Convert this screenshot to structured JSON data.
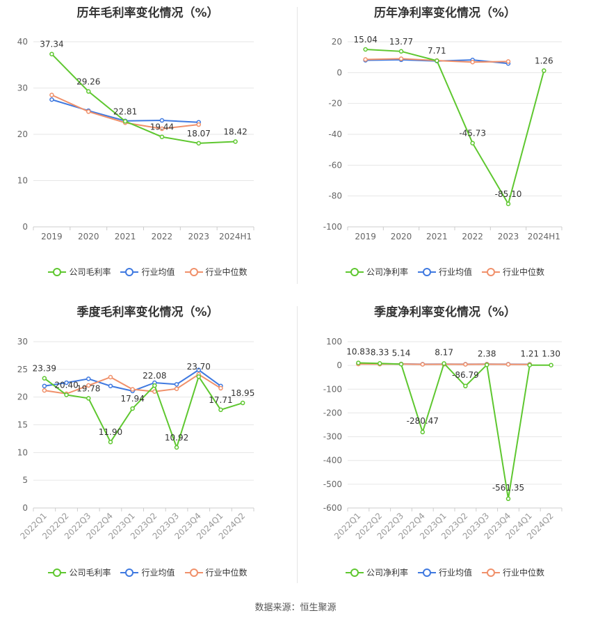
{
  "colors": {
    "company": "#5ec72f",
    "industry_avg": "#3f79e0",
    "industry_median": "#f0906a",
    "grid": "#e6e6e6",
    "axis_text": "#666666"
  },
  "source": "数据来源：恒生聚源",
  "chart_data": [
    {
      "type": "line",
      "title": "历年毛利率变化情况（%）",
      "categories": [
        "2019",
        "2020",
        "2021",
        "2022",
        "2023",
        "2024H1"
      ],
      "ylim": [
        0,
        40
      ],
      "yticks": [
        0,
        10,
        20,
        30,
        40
      ],
      "rotate_x": false,
      "grid": true,
      "legend": "bottom-center",
      "series": [
        {
          "name": "公司毛利率",
          "color_key": "company",
          "values": [
            37.34,
            29.26,
            22.81,
            19.44,
            18.07,
            18.42
          ],
          "labels": [
            "37.34",
            "29.26",
            "22.81",
            "19.44",
            "18.07",
            "18.42"
          ]
        },
        {
          "name": "行业均值",
          "color_key": "industry_avg",
          "values": [
            27.5,
            25.1,
            22.9,
            23.0,
            22.6,
            null
          ]
        },
        {
          "name": "行业中位数",
          "color_key": "industry_median",
          "values": [
            28.5,
            24.9,
            22.5,
            21.2,
            22.1,
            null
          ]
        }
      ]
    },
    {
      "type": "line",
      "title": "历年净利率变化情况（%）",
      "categories": [
        "2019",
        "2020",
        "2021",
        "2022",
        "2023",
        "2024H1"
      ],
      "ylim": [
        -100,
        20
      ],
      "yticks": [
        -100,
        -80,
        -60,
        -40,
        -20,
        0,
        20
      ],
      "rotate_x": false,
      "grid": true,
      "legend": "bottom-center",
      "series": [
        {
          "name": "公司净利率",
          "color_key": "company",
          "values": [
            15.04,
            13.77,
            7.71,
            -45.73,
            -85.1,
            1.26
          ],
          "labels": [
            "15.04",
            "13.77",
            "7.71",
            "-45.73",
            "-85.10",
            "1.26"
          ]
        },
        {
          "name": "行业均值",
          "color_key": "industry_avg",
          "values": [
            8.0,
            8.3,
            7.5,
            8.2,
            5.9,
            null
          ]
        },
        {
          "name": "行业中位数",
          "color_key": "industry_median",
          "values": [
            8.5,
            9.0,
            7.8,
            6.8,
            7.2,
            null
          ]
        }
      ]
    },
    {
      "type": "line",
      "title": "季度毛利率变化情况（%）",
      "categories": [
        "2022Q1",
        "2022Q2",
        "2022Q3",
        "2022Q4",
        "2023Q1",
        "2023Q2",
        "2023Q3",
        "2023Q4",
        "2024Q1",
        "2024Q2"
      ],
      "ylim": [
        0,
        30
      ],
      "yticks": [
        0,
        5,
        10,
        15,
        20,
        25,
        30
      ],
      "rotate_x": true,
      "grid": true,
      "legend": "bottom-center",
      "series": [
        {
          "name": "公司毛利率",
          "color_key": "company",
          "values": [
            23.39,
            20.4,
            19.78,
            11.9,
            17.94,
            22.08,
            10.92,
            23.7,
            17.71,
            18.95
          ],
          "labels": [
            "23.39",
            "20.40",
            "19.78",
            "11.90",
            "17.94",
            "22.08",
            "10.92",
            "23.70",
            "17.71",
            "18.95"
          ]
        },
        {
          "name": "行业均值",
          "color_key": "industry_avg",
          "values": [
            22.0,
            22.6,
            23.3,
            22.0,
            21.1,
            22.6,
            22.3,
            24.9,
            22.0,
            null
          ]
        },
        {
          "name": "行业中位数",
          "color_key": "industry_median",
          "values": [
            21.2,
            20.6,
            22.1,
            23.6,
            21.4,
            21.0,
            21.5,
            24.1,
            21.6,
            null
          ]
        }
      ]
    },
    {
      "type": "line",
      "title": "季度净利率变化情况（%）",
      "categories": [
        "2022Q1",
        "2022Q2",
        "2022Q3",
        "2022Q4",
        "2023Q1",
        "2023Q2",
        "2023Q3",
        "2023Q4",
        "2024Q1",
        "2024Q2"
      ],
      "ylim": [
        -600,
        100
      ],
      "yticks": [
        -600,
        -500,
        -400,
        -300,
        -200,
        -100,
        0,
        100
      ],
      "rotate_x": true,
      "grid": true,
      "legend": "bottom-center",
      "series": [
        {
          "name": "公司净利率",
          "color_key": "company",
          "values": [
            10.83,
            8.33,
            5.14,
            -280.47,
            8.17,
            -86.79,
            2.38,
            -561.35,
            1.21,
            1.3
          ],
          "labels": [
            "10.83",
            "8.33",
            "5.14",
            "-280.47",
            "8.17",
            "-86.79",
            "2.38",
            "-561.35",
            "1.21",
            "1.30"
          ]
        },
        {
          "name": "行业均值",
          "color_key": "industry_avg",
          "values": [
            7.0,
            6.5,
            6.2,
            5.0,
            5.5,
            5.0,
            5.5,
            5.0,
            4.8,
            null
          ]
        },
        {
          "name": "行业中位数",
          "color_key": "industry_median",
          "values": [
            6.0,
            5.5,
            6.0,
            4.5,
            5.0,
            4.5,
            5.0,
            4.5,
            4.2,
            null
          ]
        }
      ]
    }
  ]
}
